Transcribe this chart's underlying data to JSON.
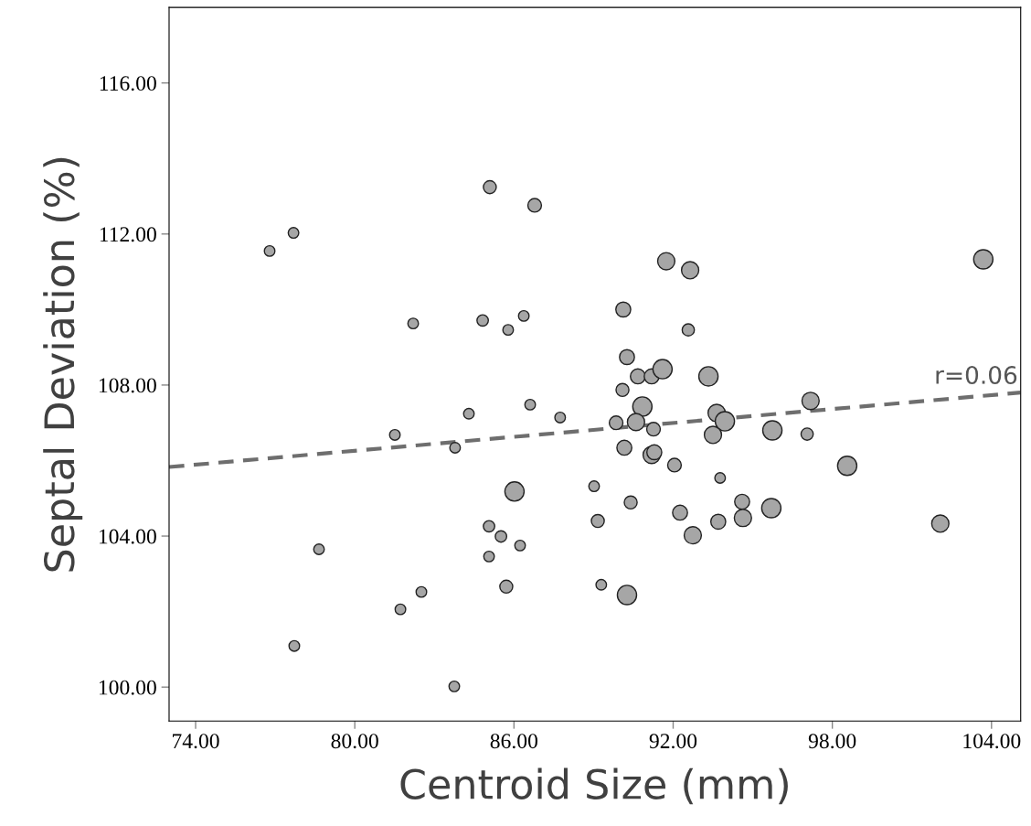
{
  "chart_data": {
    "type": "bubble",
    "xlabel": "Centroid Size (mm)",
    "ylabel": "Septal Deviation (%)",
    "xlim": [
      73,
      105.1
    ],
    "ylim": [
      99.1,
      118
    ],
    "xticks": [
      {
        "value": 74,
        "label": "74.00"
      },
      {
        "value": 80,
        "label": "80.00"
      },
      {
        "value": 86,
        "label": "86.00"
      },
      {
        "value": 92,
        "label": "92.00"
      },
      {
        "value": 98,
        "label": "98.00"
      },
      {
        "value": 104,
        "label": "104.00"
      }
    ],
    "yticks": [
      {
        "value": 100,
        "label": "100.00"
      },
      {
        "value": 104,
        "label": "104.00"
      },
      {
        "value": 108,
        "label": "108.00"
      },
      {
        "value": 112,
        "label": "112.00"
      },
      {
        "value": 116,
        "label": "116.00"
      }
    ],
    "grid": false,
    "legend": false,
    "marker": "circle",
    "annotations": [
      {
        "text": "r=0.06",
        "x": 105.0,
        "y": 107.9
      }
    ],
    "series": [
      {
        "color": "#a6a6a6",
        "x": [
          76.79,
          77.69,
          81.51,
          84.3,
          83.78,
          82.2,
          78.65,
          77.72,
          81.72,
          82.51,
          83.75,
          85.09,
          86.78,
          84.82,
          85.78,
          86.37,
          86.61,
          87.74,
          86.02,
          85.06,
          85.51,
          85.06,
          86.23,
          85.71,
          90.12,
          90.26,
          90.09,
          90.67,
          91.19,
          91.6,
          90.84,
          89.85,
          90.6,
          90.16,
          91.26,
          91.19,
          91.29,
          92.05,
          89.02,
          89.16,
          90.4,
          89.29,
          90.26,
          91.74,
          92.64,
          92.57,
          93.33,
          93.64,
          93.95,
          93.5,
          93.77,
          92.26,
          92.74,
          93.7,
          94.6,
          94.63,
          95.7,
          95.74,
          97.18,
          97.05,
          98.56,
          102.07,
          103.69
        ],
        "values": [
          111.55,
          112.03,
          106.68,
          107.24,
          106.34,
          109.63,
          103.65,
          101.09,
          102.06,
          102.52,
          100.02,
          113.24,
          112.76,
          109.71,
          109.46,
          109.83,
          107.48,
          107.14,
          105.18,
          104.26,
          103.99,
          103.46,
          103.75,
          102.66,
          110.0,
          108.74,
          107.87,
          108.23,
          108.23,
          108.42,
          107.43,
          107.0,
          107.02,
          106.34,
          106.83,
          106.15,
          106.22,
          105.88,
          105.32,
          104.4,
          104.89,
          102.71,
          102.44,
          111.28,
          111.04,
          109.46,
          108.23,
          107.26,
          107.04,
          106.68,
          105.54,
          104.62,
          104.02,
          104.38,
          104.91,
          104.48,
          104.74,
          106.8,
          107.58,
          106.7,
          105.86,
          104.33,
          111.33
        ],
        "sizes": [
          0.3,
          0.3,
          0.3,
          0.3,
          0.3,
          0.3,
          0.3,
          0.3,
          0.3,
          0.3,
          0.3,
          0.45,
          0.5,
          0.35,
          0.3,
          0.3,
          0.3,
          0.3,
          1,
          0.35,
          0.35,
          0.3,
          0.3,
          0.45,
          0.6,
          0.6,
          0.45,
          0.6,
          0.6,
          1,
          1,
          0.5,
          0.8,
          0.6,
          0.5,
          0.8,
          0.6,
          0.5,
          0.3,
          0.45,
          0.45,
          0.3,
          1,
          0.8,
          0.8,
          0.4,
          1,
          0.8,
          1,
          0.8,
          0.3,
          0.6,
          0.8,
          0.6,
          0.6,
          0.8,
          1,
          1,
          0.8,
          0.4,
          1,
          0.8,
          1
        ]
      },
      {
        "type": "line",
        "color": "#6e6e6e",
        "line_style": "dashed",
        "marker": "none",
        "x": [
          73,
          105.1
        ],
        "values": [
          105.83,
          107.8
        ]
      }
    ]
  }
}
